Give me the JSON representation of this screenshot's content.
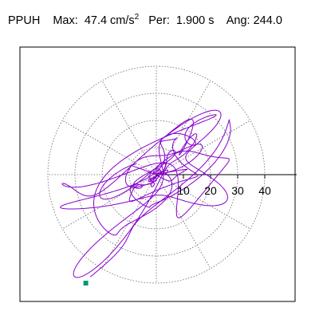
{
  "header": {
    "station": "PPUH",
    "max_label": "Max:",
    "max_value": "47.4 cm/s",
    "max_exp": "2",
    "per_label": "Per:",
    "per_value": "1.900 s",
    "ang_label": "Ang:",
    "ang_value": "244.0"
  },
  "chart_data": {
    "type": "line",
    "title": "",
    "xlabel": "",
    "ylabel": "",
    "radial_ticks": [
      10,
      20,
      30,
      40
    ],
    "radial_tick_labels": [
      "10",
      "20",
      "30",
      "40"
    ],
    "max_radius": 40,
    "xlim": [
      -47,
      47
    ],
    "ylim": [
      -47,
      47
    ],
    "grid": true,
    "trace_color": "#8800cc",
    "marker_color": "#009977",
    "end_point": [
      -26,
      -40
    ]
  }
}
